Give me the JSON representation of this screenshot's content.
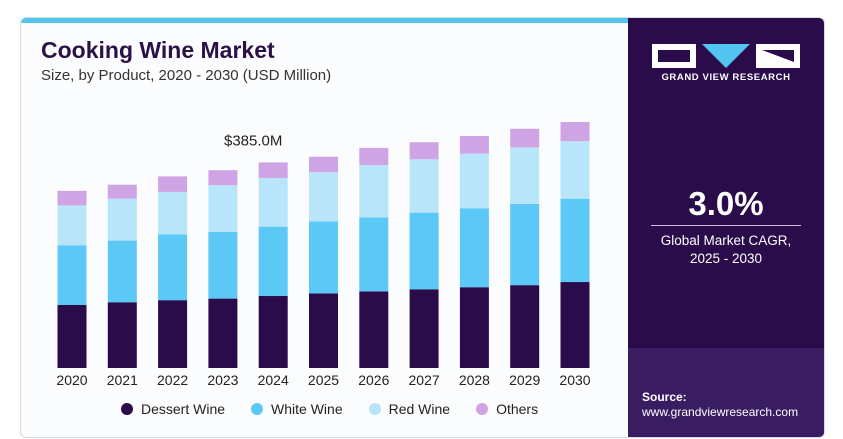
{
  "header": {
    "title": "Cooking Wine Market",
    "subtitle": "Size, by Product, 2020 - 2030 (USD Million)"
  },
  "annotation": "$385.0M",
  "chart_data": {
    "type": "bar",
    "stacked": true,
    "categories": [
      "2020",
      "2021",
      "2022",
      "2023",
      "2024",
      "2025",
      "2026",
      "2027",
      "2028",
      "2029",
      "2030"
    ],
    "series": [
      {
        "name": "Dessert Wine",
        "color": "#2b0c4a",
        "values": [
          122,
          127,
          131,
          134,
          139,
          144,
          148,
          152,
          156,
          160,
          166
        ]
      },
      {
        "name": "White Wine",
        "color": "#5bc8f5",
        "values": [
          115,
          119,
          127,
          129,
          134,
          139,
          143,
          148,
          152,
          157,
          161
        ]
      },
      {
        "name": "Red Wine",
        "color": "#b9e5fa",
        "values": [
          77,
          81,
          82,
          90,
          94,
          95,
          101,
          103,
          106,
          109,
          111
        ]
      },
      {
        "name": "Others",
        "color": "#cfa4e4",
        "values": [
          28,
          27,
          30,
          29,
          30,
          30,
          33,
          33,
          34,
          36,
          37
        ]
      }
    ],
    "ylim": [
      0,
      560
    ],
    "grid": false,
    "legend_position": "bottom"
  },
  "sidebar": {
    "brand": "GRAND VIEW RESEARCH",
    "cagr_value": "3.0%",
    "cagr_label": "Global Market CAGR, 2025 - 2030",
    "source_label": "Source:",
    "source_url": "www.grandviewresearch.com"
  }
}
